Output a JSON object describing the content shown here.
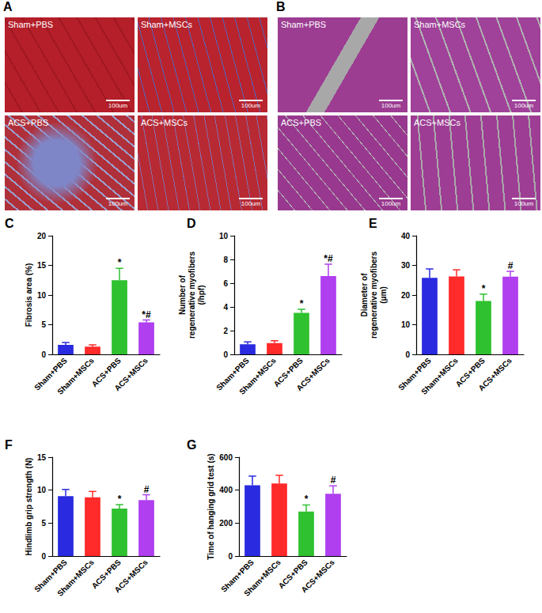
{
  "images": [
    {
      "panel": "A",
      "tiles": [
        "Sham+PBS",
        "Sham+MSCs",
        "ACS+PBS",
        "ACS+MSCs"
      ],
      "scale_bar": "100um"
    },
    {
      "panel": "B",
      "tiles": [
        "Sham+PBS",
        "Sham+MSCs",
        "ACS+PBS",
        "ACS+MSCs"
      ],
      "scale_bar": "100um"
    }
  ],
  "chart_data": [
    {
      "type": "bar",
      "panel": "C",
      "y_label": "Fibrosis area (%)",
      "categories": [
        "Sham+PBS",
        "Sham+MSCs",
        "ACS+PBS",
        "ACS+MSCs"
      ],
      "values": [
        1.6,
        1.3,
        12.5,
        5.4
      ],
      "errors": [
        0.4,
        0.3,
        2.0,
        0.4
      ],
      "annotations": [
        null,
        null,
        "*",
        "*#"
      ],
      "colors": [
        "#2a2ae0",
        "#ff2a2a",
        "#2fc12f",
        "#b03ff0"
      ],
      "ylim": [
        0,
        20
      ],
      "yticks": [
        0,
        5,
        10,
        15,
        20
      ],
      "grid": false
    },
    {
      "type": "bar",
      "panel": "D",
      "y_label": "Number of\nregenerative myofibers\n(/hpf)",
      "categories": [
        "Sham+PBS",
        "Sham+MSCs",
        "ACS+PBS",
        "ACS+MSCs"
      ],
      "values": [
        0.85,
        0.95,
        3.5,
        6.6
      ],
      "errors": [
        0.2,
        0.2,
        0.3,
        1.0
      ],
      "annotations": [
        null,
        null,
        "*",
        "*#"
      ],
      "colors": [
        "#2a2ae0",
        "#ff2a2a",
        "#2fc12f",
        "#b03ff0"
      ],
      "ylim": [
        0,
        10
      ],
      "yticks": [
        0,
        2,
        4,
        6,
        8,
        10
      ],
      "grid": false
    },
    {
      "type": "bar",
      "panel": "E",
      "y_label": "Diameter of\nregenerative myofibers\n(μm)",
      "categories": [
        "Sham+PBS",
        "Sham+MSCs",
        "ACS+PBS",
        "ACS+MSCs"
      ],
      "values": [
        25.8,
        26.3,
        18.0,
        26.2
      ],
      "errors": [
        3.0,
        2.2,
        2.3,
        1.8
      ],
      "annotations": [
        null,
        null,
        "*",
        "#"
      ],
      "colors": [
        "#2a2ae0",
        "#ff2a2a",
        "#2fc12f",
        "#b03ff0"
      ],
      "ylim": [
        0,
        40
      ],
      "yticks": [
        0,
        10,
        20,
        30,
        40
      ],
      "grid": false
    },
    {
      "type": "bar",
      "panel": "F",
      "y_label": "Hindlimb grip strength (N)",
      "categories": [
        "Sham+PBS",
        "Sham+MSCs",
        "ACS+PBS",
        "ACS+MSCs"
      ],
      "values": [
        9.1,
        8.9,
        7.2,
        8.5
      ],
      "errors": [
        1.0,
        0.9,
        0.6,
        0.8
      ],
      "annotations": [
        null,
        null,
        "*",
        "#"
      ],
      "colors": [
        "#2a2ae0",
        "#ff2a2a",
        "#2fc12f",
        "#b03ff0"
      ],
      "ylim": [
        0,
        15
      ],
      "yticks": [
        0,
        5,
        10,
        15
      ],
      "grid": false
    },
    {
      "type": "bar",
      "panel": "G",
      "y_label": "Time of hanging grid test (s)",
      "categories": [
        "Sham+PBS",
        "Sham+MSCs",
        "ACS+PBS",
        "ACS+MSCs"
      ],
      "values": [
        430,
        440,
        270,
        378
      ],
      "errors": [
        55,
        50,
        40,
        48
      ],
      "annotations": [
        null,
        null,
        "*",
        "#"
      ],
      "colors": [
        "#2a2ae0",
        "#ff2a2a",
        "#2fc12f",
        "#b03ff0"
      ],
      "ylim": [
        0,
        600
      ],
      "yticks": [
        0,
        200,
        400,
        600
      ],
      "grid": false
    }
  ]
}
